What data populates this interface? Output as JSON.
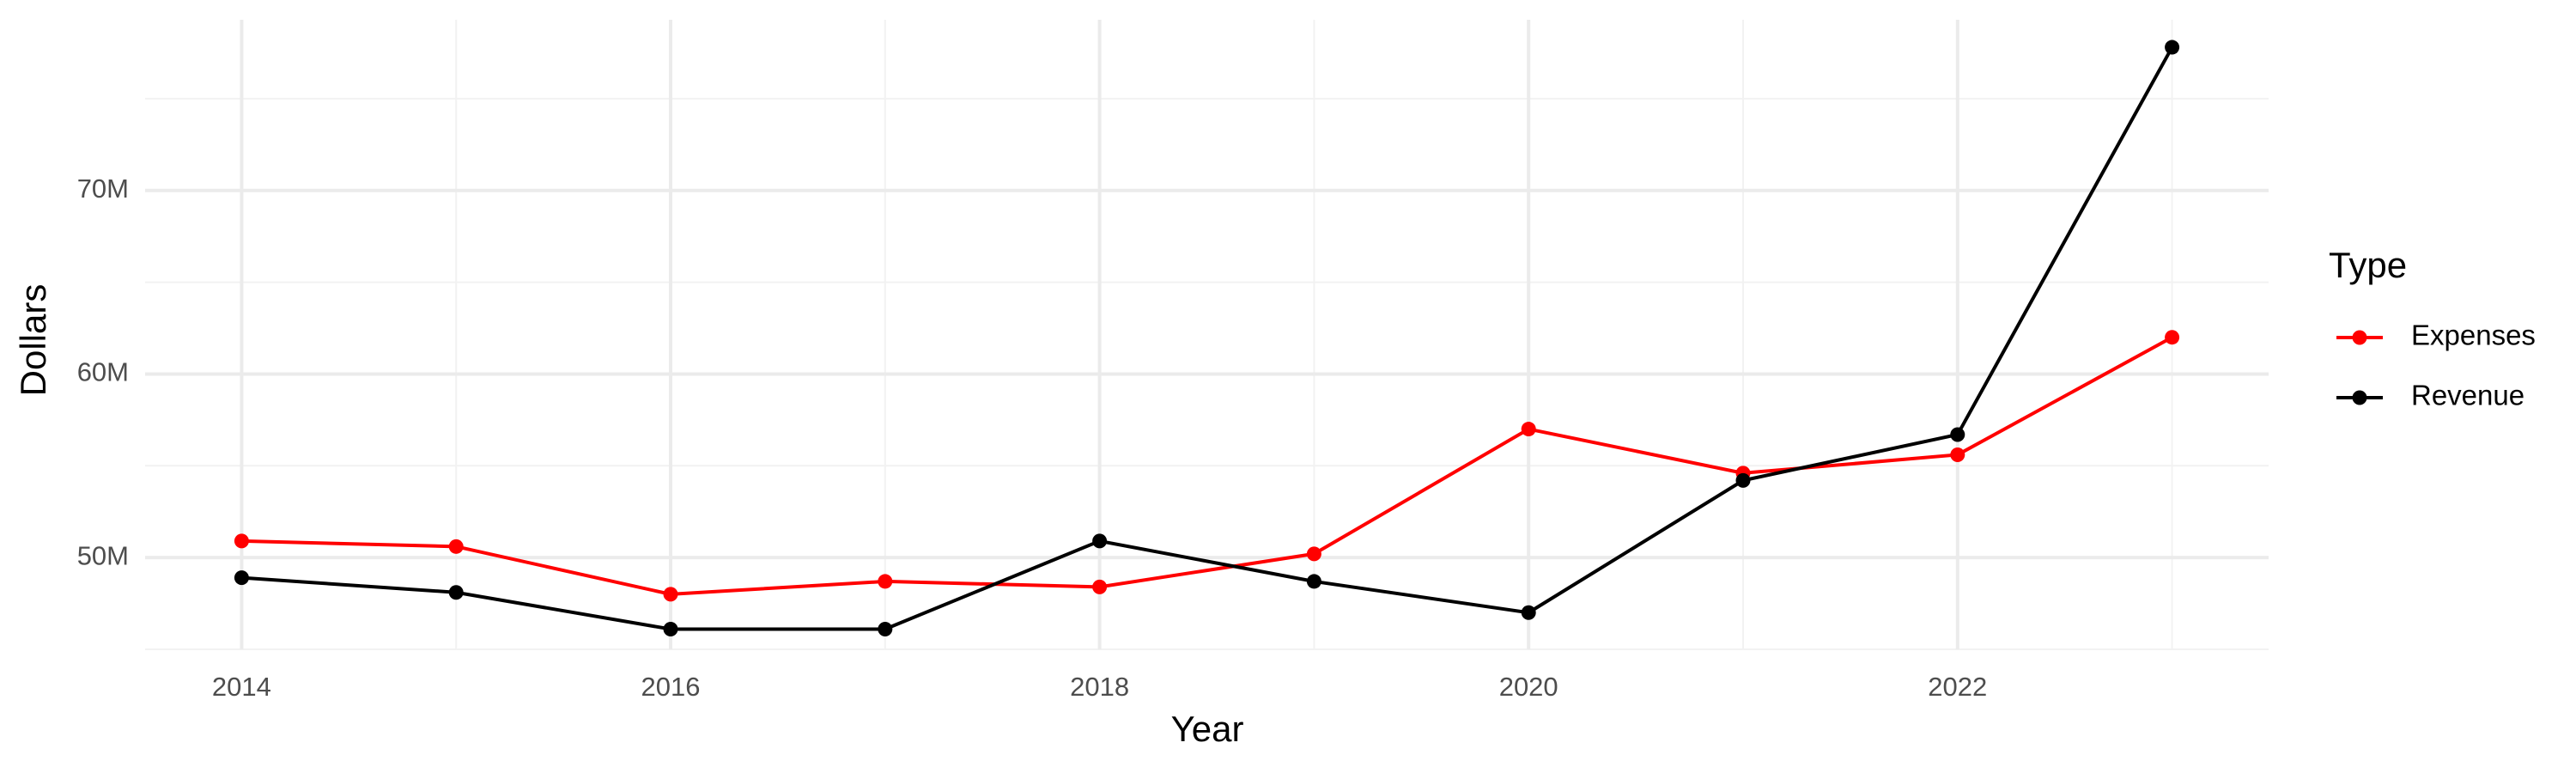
{
  "chart_data": {
    "type": "line",
    "x_label": "Year",
    "y_label": "Dollars",
    "legend_title": "Type",
    "legend_position": "right",
    "grid": true,
    "x": [
      2014,
      2015,
      2016,
      2017,
      2018,
      2019,
      2020,
      2021,
      2022,
      2023
    ],
    "series": [
      {
        "name": "Expenses",
        "color": "#ff0000",
        "values": [
          50900000,
          50600000,
          48000000,
          48700000,
          48400000,
          50200000,
          57000000,
          54600000,
          55600000,
          62000000
        ]
      },
      {
        "name": "Revenue",
        "color": "#000000",
        "values": [
          48900000,
          48100000,
          46100000,
          46100000,
          50900000,
          48700000,
          47000000,
          54200000,
          56700000,
          77800000
        ]
      }
    ],
    "xlim": [
      2013.55,
      2023.45
    ],
    "xticks": [
      2014,
      2016,
      2018,
      2020,
      2022
    ],
    "ylim": [
      45000000,
      79300000
    ],
    "yticks": [
      {
        "value": 50000000,
        "label": "50M"
      },
      {
        "value": 60000000,
        "label": "60M"
      },
      {
        "value": 70000000,
        "label": "70M"
      }
    ]
  }
}
